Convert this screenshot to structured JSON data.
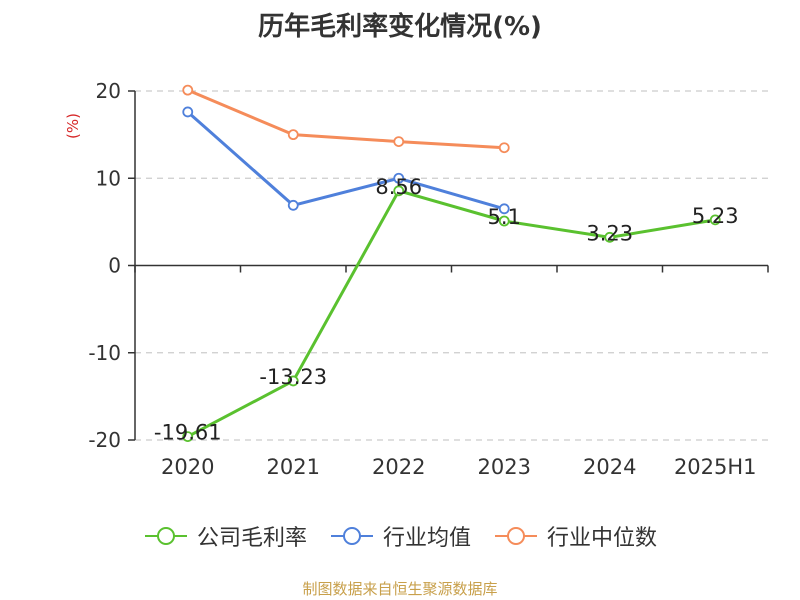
{
  "chart_data": {
    "type": "line",
    "title": "历年毛利率变化情况(%)",
    "ylabel": "(%)",
    "categories": [
      "2020",
      "2021",
      "2022",
      "2023",
      "2024",
      "2025H1"
    ],
    "ylim": [
      -20,
      20
    ],
    "yticks": [
      "20",
      "10",
      "0",
      "-10",
      "-20"
    ],
    "grid": true,
    "legend_position": "bottom",
    "series": [
      {
        "name": "公司毛利率",
        "color": "#5ac12f",
        "values": [
          -19.61,
          -13.23,
          8.56,
          5.1,
          3.23,
          5.23
        ],
        "labels": [
          "-19.61",
          "-13.23",
          "8.56",
          "5.1",
          "3.23",
          "5.23"
        ]
      },
      {
        "name": "行业均值",
        "color": "#4f80db",
        "values": [
          17.6,
          6.9,
          10.0,
          6.5,
          null,
          null
        ]
      },
      {
        "name": "行业中位数",
        "color": "#f58c5a",
        "values": [
          20.1,
          15.0,
          14.2,
          13.5,
          null,
          null
        ]
      }
    ]
  },
  "source_note": "制图数据来自恒生聚源数据库",
  "source_color": "#c8a04b",
  "ylabel_color": "#d62728"
}
